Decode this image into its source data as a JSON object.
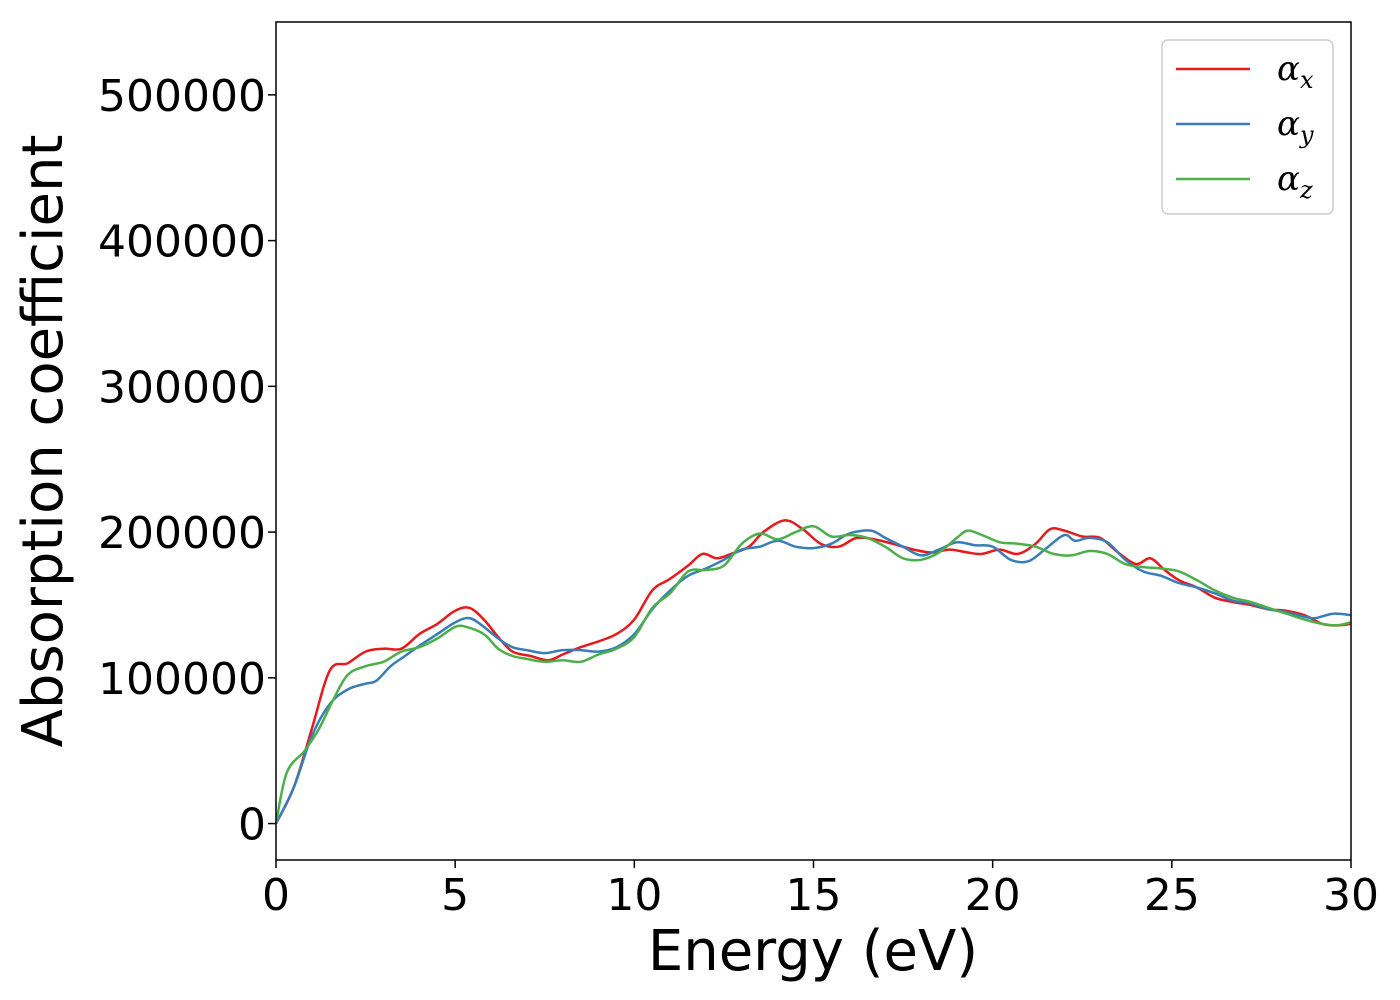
{
  "chart_data": {
    "type": "line",
    "xlabel": "Energy (eV)",
    "ylabel": "Absorption coefficient",
    "xlim": [
      0,
      30
    ],
    "ylim": [
      -25000,
      550000
    ],
    "xticks": [
      0,
      5,
      10,
      15,
      20,
      25,
      30
    ],
    "yticks": [
      0,
      100000,
      200000,
      300000,
      400000,
      500000
    ],
    "xtick_labels": [
      "0",
      "5",
      "10",
      "15",
      "20",
      "25",
      "30"
    ],
    "ytick_labels": [
      "0",
      "100000",
      "200000",
      "300000",
      "400000",
      "500000"
    ],
    "grid": false,
    "legend_position": "top-right",
    "series": [
      {
        "name": "α",
        "subscript": "x",
        "color": "#e41a1c",
        "points": [
          [
            0,
            0
          ],
          [
            0.5,
            25000
          ],
          [
            1,
            65000
          ],
          [
            1.5,
            105000
          ],
          [
            2,
            110000
          ],
          [
            2.5,
            118000
          ],
          [
            3,
            120000
          ],
          [
            3.5,
            120000
          ],
          [
            4,
            130000
          ],
          [
            4.5,
            137000
          ],
          [
            5,
            146000
          ],
          [
            5.4,
            148000
          ],
          [
            5.8,
            140000
          ],
          [
            6.2,
            128000
          ],
          [
            6.6,
            118000
          ],
          [
            7.1,
            115000
          ],
          [
            7.6,
            112000
          ],
          [
            8,
            116000
          ],
          [
            8.5,
            121000
          ],
          [
            9,
            125000
          ],
          [
            9.5,
            130000
          ],
          [
            10,
            140000
          ],
          [
            10.5,
            160000
          ],
          [
            11,
            168000
          ],
          [
            11.5,
            177000
          ],
          [
            11.9,
            185000
          ],
          [
            12.3,
            182000
          ],
          [
            12.7,
            185000
          ],
          [
            13.2,
            190000
          ],
          [
            13.6,
            200000
          ],
          [
            14.2,
            208000
          ],
          [
            14.7,
            202000
          ],
          [
            15.2,
            192000
          ],
          [
            15.7,
            190000
          ],
          [
            16.2,
            196000
          ],
          [
            16.7,
            195000
          ],
          [
            17.2,
            192000
          ],
          [
            17.8,
            188000
          ],
          [
            18.3,
            186000
          ],
          [
            18.8,
            188000
          ],
          [
            19.3,
            186000
          ],
          [
            19.7,
            185000
          ],
          [
            20.2,
            188000
          ],
          [
            20.7,
            185000
          ],
          [
            21.2,
            192000
          ],
          [
            21.6,
            202000
          ],
          [
            22,
            201000
          ],
          [
            22.5,
            197000
          ],
          [
            23,
            196000
          ],
          [
            23.5,
            186000
          ],
          [
            24,
            178000
          ],
          [
            24.4,
            182000
          ],
          [
            24.8,
            174000
          ],
          [
            25.2,
            167000
          ],
          [
            25.7,
            162000
          ],
          [
            26.2,
            155000
          ],
          [
            26.7,
            152000
          ],
          [
            27.2,
            150000
          ],
          [
            27.7,
            147000
          ],
          [
            28.2,
            146000
          ],
          [
            28.7,
            143000
          ],
          [
            29.2,
            137000
          ],
          [
            29.6,
            136000
          ],
          [
            30,
            137000
          ]
        ]
      },
      {
        "name": "α",
        "subscript": "y",
        "color": "#377eb8",
        "points": [
          [
            0,
            0
          ],
          [
            0.5,
            25000
          ],
          [
            1,
            60000
          ],
          [
            1.5,
            82000
          ],
          [
            2,
            92000
          ],
          [
            2.5,
            96000
          ],
          [
            2.8,
            98000
          ],
          [
            3.2,
            108000
          ],
          [
            3.6,
            115000
          ],
          [
            4,
            122000
          ],
          [
            4.5,
            130000
          ],
          [
            5,
            138000
          ],
          [
            5.4,
            141000
          ],
          [
            5.8,
            135000
          ],
          [
            6.2,
            127000
          ],
          [
            6.6,
            121000
          ],
          [
            7,
            119000
          ],
          [
            7.5,
            117000
          ],
          [
            8,
            119000
          ],
          [
            8.5,
            119000
          ],
          [
            9,
            118000
          ],
          [
            9.5,
            121000
          ],
          [
            10,
            130000
          ],
          [
            10.5,
            147000
          ],
          [
            11,
            160000
          ],
          [
            11.5,
            170000
          ],
          [
            12,
            175000
          ],
          [
            12.5,
            181000
          ],
          [
            13,
            188000
          ],
          [
            13.5,
            190000
          ],
          [
            14,
            194000
          ],
          [
            14.5,
            190000
          ],
          [
            15,
            189000
          ],
          [
            15.5,
            192000
          ],
          [
            16,
            199000
          ],
          [
            16.6,
            201000
          ],
          [
            17,
            196000
          ],
          [
            17.5,
            190000
          ],
          [
            18,
            184000
          ],
          [
            18.5,
            188000
          ],
          [
            19,
            193000
          ],
          [
            19.5,
            191000
          ],
          [
            20,
            190000
          ],
          [
            20.5,
            181000
          ],
          [
            21,
            180000
          ],
          [
            21.5,
            189000
          ],
          [
            22,
            198000
          ],
          [
            22.3,
            194000
          ],
          [
            22.7,
            196000
          ],
          [
            23.2,
            193000
          ],
          [
            23.7,
            181000
          ],
          [
            24.2,
            173000
          ],
          [
            24.7,
            170000
          ],
          [
            25.2,
            165000
          ],
          [
            25.7,
            162000
          ],
          [
            26.2,
            158000
          ],
          [
            26.7,
            153000
          ],
          [
            27.2,
            151000
          ],
          [
            27.7,
            147000
          ],
          [
            28.2,
            145000
          ],
          [
            28.7,
            142000
          ],
          [
            29,
            141000
          ],
          [
            29.5,
            144000
          ],
          [
            30,
            143000
          ]
        ]
      },
      {
        "name": "α",
        "subscript": "z",
        "color": "#4daf4a",
        "points": [
          [
            0,
            0
          ],
          [
            0.3,
            35000
          ],
          [
            0.8,
            50000
          ],
          [
            1.2,
            65000
          ],
          [
            1.6,
            85000
          ],
          [
            2,
            102000
          ],
          [
            2.5,
            108000
          ],
          [
            3,
            111000
          ],
          [
            3.5,
            118000
          ],
          [
            4,
            121000
          ],
          [
            4.5,
            127000
          ],
          [
            5,
            135000
          ],
          [
            5.3,
            135000
          ],
          [
            5.8,
            130000
          ],
          [
            6.2,
            120000
          ],
          [
            6.6,
            115000
          ],
          [
            7,
            113000
          ],
          [
            7.5,
            111000
          ],
          [
            8,
            112000
          ],
          [
            8.5,
            111000
          ],
          [
            9,
            116000
          ],
          [
            9.5,
            120000
          ],
          [
            10,
            128000
          ],
          [
            10.5,
            148000
          ],
          [
            11,
            158000
          ],
          [
            11.5,
            173000
          ],
          [
            12,
            174000
          ],
          [
            12.5,
            177000
          ],
          [
            13,
            192000
          ],
          [
            13.5,
            199000
          ],
          [
            14,
            195000
          ],
          [
            14.5,
            200000
          ],
          [
            15,
            204000
          ],
          [
            15.5,
            197000
          ],
          [
            16,
            198000
          ],
          [
            16.5,
            196000
          ],
          [
            17,
            190000
          ],
          [
            17.5,
            182000
          ],
          [
            18,
            181000
          ],
          [
            18.5,
            186000
          ],
          [
            19,
            196000
          ],
          [
            19.3,
            201000
          ],
          [
            19.7,
            198000
          ],
          [
            20.2,
            193000
          ],
          [
            20.7,
            192000
          ],
          [
            21.2,
            190000
          ],
          [
            21.7,
            185000
          ],
          [
            22.2,
            184000
          ],
          [
            22.7,
            187000
          ],
          [
            23.2,
            185000
          ],
          [
            23.7,
            178000
          ],
          [
            24.2,
            176000
          ],
          [
            24.7,
            175000
          ],
          [
            25.2,
            173000
          ],
          [
            25.7,
            167000
          ],
          [
            26.2,
            160000
          ],
          [
            26.7,
            155000
          ],
          [
            27.2,
            152000
          ],
          [
            27.7,
            148000
          ],
          [
            28.2,
            144000
          ],
          [
            28.7,
            140000
          ],
          [
            29.2,
            137000
          ],
          [
            29.6,
            136000
          ],
          [
            30,
            138000
          ]
        ]
      }
    ]
  }
}
